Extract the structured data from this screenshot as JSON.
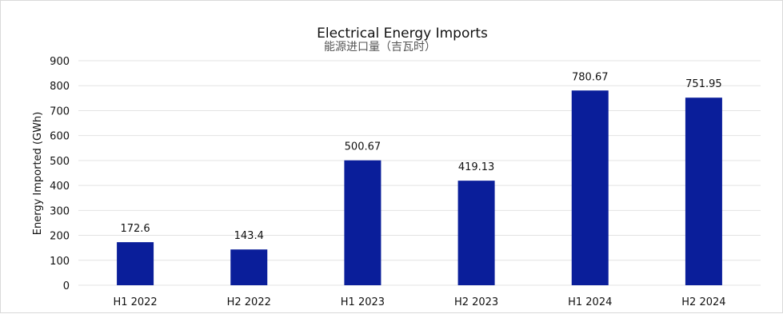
{
  "chart_data": {
    "type": "bar",
    "title": "Electrical Energy Imports",
    "subtitle": "能源进口量（吉瓦时）",
    "xlabel": "",
    "ylabel": "Energy Imported (GWh)",
    "categories": [
      "H1 2022",
      "H2 2022",
      "H1 2023",
      "H2 2023",
      "H1 2024",
      "H2 2024"
    ],
    "values": [
      172.6,
      143.4,
      500.67,
      419.13,
      780.67,
      751.95
    ],
    "value_labels": [
      "172.6",
      "143.4",
      "500.67",
      "419.13",
      "780.67",
      "751.95"
    ],
    "ylim": [
      0,
      900
    ],
    "yticks": [
      0,
      100,
      200,
      300,
      400,
      500,
      600,
      700,
      800,
      900
    ],
    "grid": true,
    "bar_color": "#0a1e9a",
    "grid_color": "#e3e3e3"
  }
}
